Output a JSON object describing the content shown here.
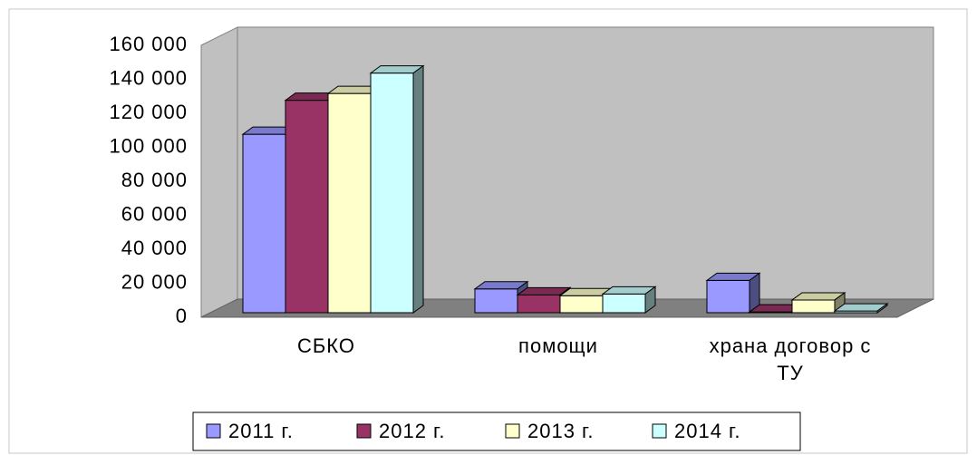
{
  "chart_data": {
    "type": "bar3d",
    "categories": [
      "СБКО",
      "помощи",
      "храна договор с ТУ"
    ],
    "series": [
      {
        "name": "2011 г.",
        "color": "#9999ff",
        "values": [
          105000,
          14000,
          19000
        ]
      },
      {
        "name": "2012 г.",
        "color": "#993366",
        "values": [
          125000,
          10500,
          500
        ]
      },
      {
        "name": "2013 г.",
        "color": "#ffffcc",
        "values": [
          129000,
          10000,
          7500
        ]
      },
      {
        "name": "2014 г.",
        "color": "#ccffff",
        "values": [
          141000,
          11000,
          1000
        ]
      }
    ],
    "ylim": [
      0,
      160000
    ],
    "yticks": [
      0,
      {
        "value": 20000,
        "label": "20 000"
      },
      {
        "value": 40000,
        "label": "40 000"
      },
      {
        "value": 60000,
        "label": "60 000"
      },
      {
        "value": 80000,
        "label": "80 000"
      },
      {
        "value": 100000,
        "label": "100 000"
      },
      {
        "value": 120000,
        "label": "120 000"
      },
      {
        "value": 140000,
        "label": "140 000"
      },
      {
        "value": 160000,
        "label": "160 000"
      }
    ],
    "legend": "bottom"
  }
}
